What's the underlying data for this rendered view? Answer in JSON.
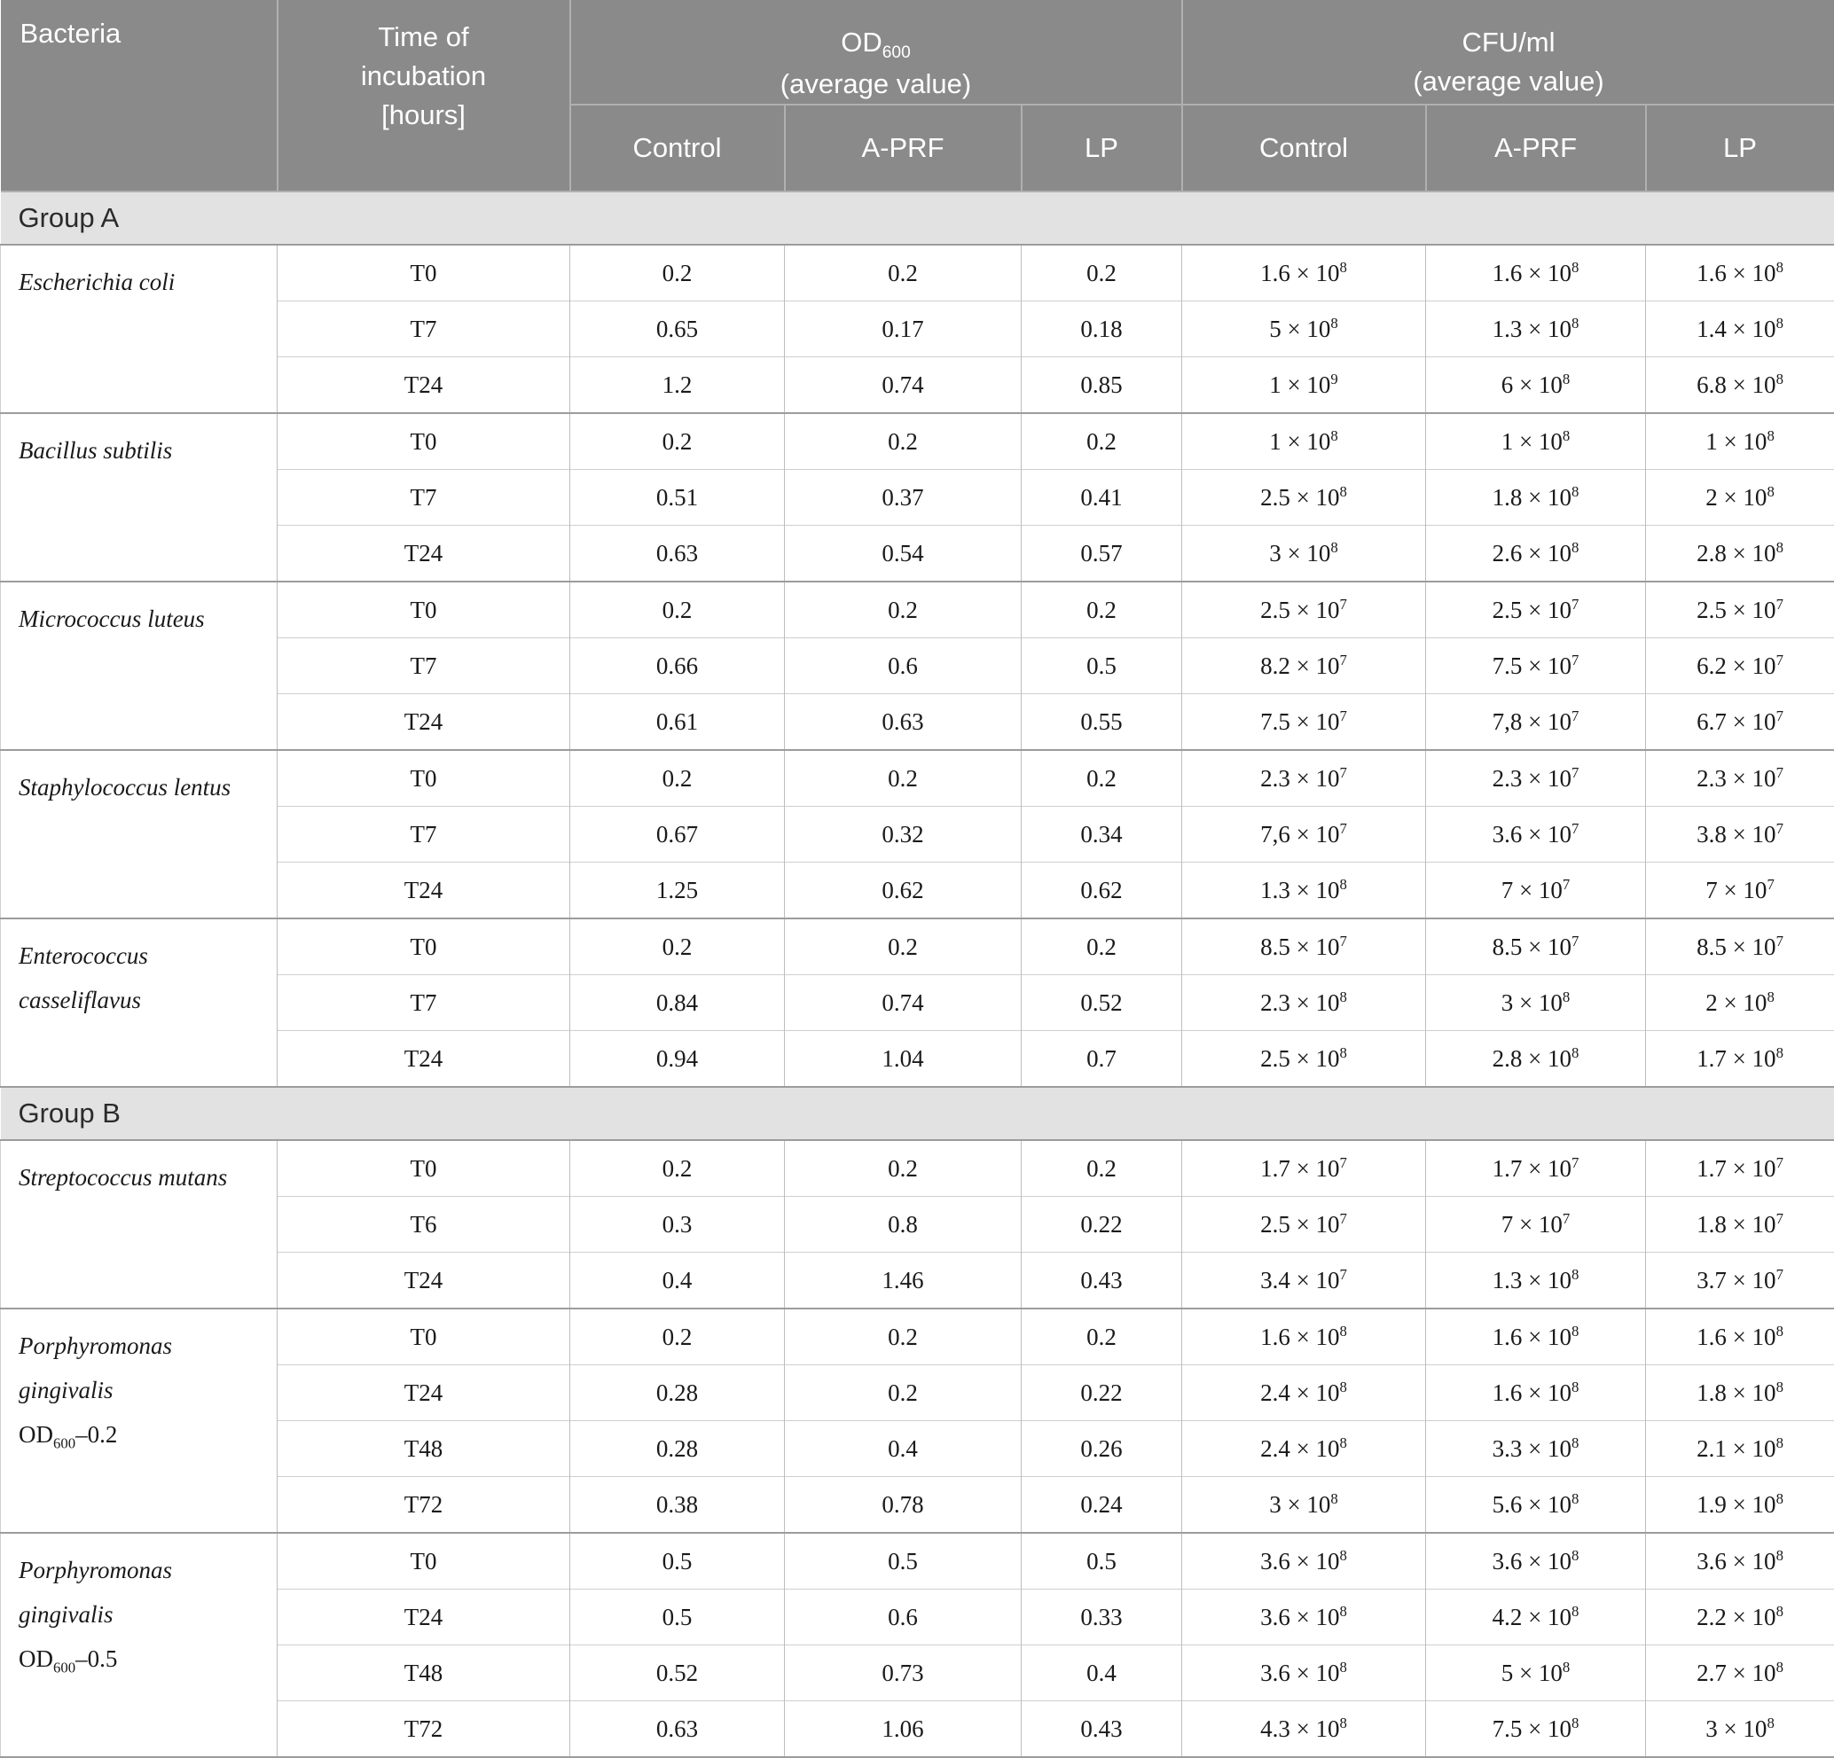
{
  "header": {
    "bacteria": "Bacteria",
    "time_lines": [
      "Time of",
      "incubation",
      "[hours]"
    ],
    "od_group": {
      "label": "OD",
      "sub": "600",
      "line2": "(average value)"
    },
    "cfu_group": {
      "label": "CFU/ml",
      "line2": "(average value)"
    },
    "subcolumns": [
      "Control",
      "A-PRF",
      "LP"
    ]
  },
  "colors": {
    "header_bg": "#8a8a8a",
    "header_text": "#ffffff",
    "group_band_bg": "#e2e2e2",
    "border_light": "#cfcfcf",
    "border_dark": "#9c9c9c"
  },
  "groups": [
    {
      "label": "Group A",
      "species": [
        {
          "name_lines": [
            "Escherichia coli"
          ],
          "od_note": null,
          "rows": [
            {
              "time": "T0",
              "od": [
                "0.2",
                "0.2",
                "0.2"
              ],
              "cfu": [
                [
                  "1.6 × 10",
                  "8"
                ],
                [
                  "1.6 × 10",
                  "8"
                ],
                [
                  "1.6 × 10",
                  "8"
                ]
              ]
            },
            {
              "time": "T7",
              "od": [
                "0.65",
                "0.17",
                "0.18"
              ],
              "cfu": [
                [
                  "5 × 10",
                  "8"
                ],
                [
                  "1.3 × 10",
                  "8"
                ],
                [
                  "1.4 × 10",
                  "8"
                ]
              ]
            },
            {
              "time": "T24",
              "od": [
                "1.2",
                "0.74",
                "0.85"
              ],
              "cfu": [
                [
                  "1 × 10",
                  "9"
                ],
                [
                  "6 × 10",
                  "8"
                ],
                [
                  "6.8 × 10",
                  "8"
                ]
              ]
            }
          ]
        },
        {
          "name_lines": [
            "Bacillus subtilis"
          ],
          "od_note": null,
          "rows": [
            {
              "time": "T0",
              "od": [
                "0.2",
                "0.2",
                "0.2"
              ],
              "cfu": [
                [
                  "1 × 10",
                  "8"
                ],
                [
                  "1 × 10",
                  "8"
                ],
                [
                  "1 × 10",
                  "8"
                ]
              ]
            },
            {
              "time": "T7",
              "od": [
                "0.51",
                "0.37",
                "0.41"
              ],
              "cfu": [
                [
                  "2.5 × 10",
                  "8"
                ],
                [
                  "1.8 × 10",
                  "8"
                ],
                [
                  "2 × 10",
                  "8"
                ]
              ]
            },
            {
              "time": "T24",
              "od": [
                "0.63",
                "0.54",
                "0.57"
              ],
              "cfu": [
                [
                  "3 × 10",
                  "8"
                ],
                [
                  "2.6 × 10",
                  "8"
                ],
                [
                  "2.8 × 10",
                  "8"
                ]
              ]
            }
          ]
        },
        {
          "name_lines": [
            "Micrococcus luteus"
          ],
          "od_note": null,
          "rows": [
            {
              "time": "T0",
              "od": [
                "0.2",
                "0.2",
                "0.2"
              ],
              "cfu": [
                [
                  "2.5 × 10",
                  "7"
                ],
                [
                  "2.5 × 10",
                  "7"
                ],
                [
                  "2.5 × 10",
                  "7"
                ]
              ]
            },
            {
              "time": "T7",
              "od": [
                "0.66",
                "0.6",
                "0.5"
              ],
              "cfu": [
                [
                  "8.2 × 10",
                  "7"
                ],
                [
                  "7.5 × 10",
                  "7"
                ],
                [
                  "6.2 × 10",
                  "7"
                ]
              ]
            },
            {
              "time": "T24",
              "od": [
                "0.61",
                "0.63",
                "0.55"
              ],
              "cfu": [
                [
                  "7.5 × 10",
                  "7"
                ],
                [
                  "7,8 × 10",
                  "7"
                ],
                [
                  "6.7 × 10",
                  "7"
                ]
              ]
            }
          ]
        },
        {
          "name_lines": [
            "Staphylococcus lentus"
          ],
          "od_note": null,
          "rows": [
            {
              "time": "T0",
              "od": [
                "0.2",
                "0.2",
                "0.2"
              ],
              "cfu": [
                [
                  "2.3 × 10",
                  "7"
                ],
                [
                  "2.3 × 10",
                  "7"
                ],
                [
                  "2.3 × 10",
                  "7"
                ]
              ]
            },
            {
              "time": "T7",
              "od": [
                "0.67",
                "0.32",
                "0.34"
              ],
              "cfu": [
                [
                  "7,6 × 10",
                  "7"
                ],
                [
                  "3.6 × 10",
                  "7"
                ],
                [
                  "3.8 × 10",
                  "7"
                ]
              ]
            },
            {
              "time": "T24",
              "od": [
                "1.25",
                "0.62",
                "0.62"
              ],
              "cfu": [
                [
                  "1.3 × 10",
                  "8"
                ],
                [
                  "7 × 10",
                  "7"
                ],
                [
                  "7 × 10",
                  "7"
                ]
              ]
            }
          ]
        },
        {
          "name_lines": [
            "Enterococcus",
            "casseliflavus"
          ],
          "od_note": null,
          "rows": [
            {
              "time": "T0",
              "od": [
                "0.2",
                "0.2",
                "0.2"
              ],
              "cfu": [
                [
                  "8.5 × 10",
                  "7"
                ],
                [
                  "8.5 × 10",
                  "7"
                ],
                [
                  "8.5 × 10",
                  "7"
                ]
              ]
            },
            {
              "time": "T7",
              "od": [
                "0.84",
                "0.74",
                "0.52"
              ],
              "cfu": [
                [
                  "2.3 × 10",
                  "8"
                ],
                [
                  "3 × 10",
                  "8"
                ],
                [
                  "2 × 10",
                  "8"
                ]
              ]
            },
            {
              "time": "T24",
              "od": [
                "0.94",
                "1.04",
                "0.7"
              ],
              "cfu": [
                [
                  "2.5 × 10",
                  "8"
                ],
                [
                  "2.8 × 10",
                  "8"
                ],
                [
                  "1.7 × 10",
                  "8"
                ]
              ]
            }
          ]
        }
      ]
    },
    {
      "label": "Group B",
      "species": [
        {
          "name_lines": [
            "Streptococcus mutans"
          ],
          "od_note": null,
          "rows": [
            {
              "time": "T0",
              "od": [
                "0.2",
                "0.2",
                "0.2"
              ],
              "cfu": [
                [
                  "1.7 × 10",
                  "7"
                ],
                [
                  "1.7 × 10",
                  "7"
                ],
                [
                  "1.7 × 10",
                  "7"
                ]
              ]
            },
            {
              "time": "T6",
              "od": [
                "0.3",
                "0.8",
                "0.22"
              ],
              "cfu": [
                [
                  "2.5 × 10",
                  "7"
                ],
                [
                  "7 × 10",
                  "7"
                ],
                [
                  "1.8 × 10",
                  "7"
                ]
              ]
            },
            {
              "time": "T24",
              "od": [
                "0.4",
                "1.46",
                "0.43"
              ],
              "cfu": [
                [
                  "3.4 × 10",
                  "7"
                ],
                [
                  "1.3 × 10",
                  "8"
                ],
                [
                  "3.7 × 10",
                  "7"
                ]
              ]
            }
          ]
        },
        {
          "name_lines": [
            "Porphyromonas",
            "gingivalis"
          ],
          "od_note": {
            "prefix": "OD",
            "sub": "600",
            "suffix": "–0.2"
          },
          "rows": [
            {
              "time": "T0",
              "od": [
                "0.2",
                "0.2",
                "0.2"
              ],
              "cfu": [
                [
                  "1.6 × 10",
                  "8"
                ],
                [
                  "1.6 × 10",
                  "8"
                ],
                [
                  "1.6 × 10",
                  "8"
                ]
              ]
            },
            {
              "time": "T24",
              "od": [
                "0.28",
                "0.2",
                "0.22"
              ],
              "cfu": [
                [
                  "2.4 × 10",
                  "8"
                ],
                [
                  "1.6 × 10",
                  "8"
                ],
                [
                  "1.8 × 10",
                  "8"
                ]
              ]
            },
            {
              "time": "T48",
              "od": [
                "0.28",
                "0.4",
                "0.26"
              ],
              "cfu": [
                [
                  "2.4 × 10",
                  "8"
                ],
                [
                  "3.3 × 10",
                  "8"
                ],
                [
                  "2.1 × 10",
                  "8"
                ]
              ]
            },
            {
              "time": "T72",
              "od": [
                "0.38",
                "0.78",
                "0.24"
              ],
              "cfu": [
                [
                  "3 × 10",
                  "8"
                ],
                [
                  "5.6 × 10",
                  "8"
                ],
                [
                  "1.9 × 10",
                  "8"
                ]
              ]
            }
          ]
        },
        {
          "name_lines": [
            "Porphyromonas",
            "gingivalis"
          ],
          "od_note": {
            "prefix": "OD",
            "sub": "600",
            "suffix": "–0.5"
          },
          "rows": [
            {
              "time": "T0",
              "od": [
                "0.5",
                "0.5",
                "0.5"
              ],
              "cfu": [
                [
                  "3.6 × 10",
                  "8"
                ],
                [
                  "3.6 × 10",
                  "8"
                ],
                [
                  "3.6 × 10",
                  "8"
                ]
              ]
            },
            {
              "time": "T24",
              "od": [
                "0.5",
                "0.6",
                "0.33"
              ],
              "cfu": [
                [
                  "3.6 × 10",
                  "8"
                ],
                [
                  "4.2 × 10",
                  "8"
                ],
                [
                  "2.2 × 10",
                  "8"
                ]
              ]
            },
            {
              "time": "T48",
              "od": [
                "0.52",
                "0.73",
                "0.4"
              ],
              "cfu": [
                [
                  "3.6 × 10",
                  "8"
                ],
                [
                  "5 × 10",
                  "8"
                ],
                [
                  "2.7 × 10",
                  "8"
                ]
              ]
            },
            {
              "time": "T72",
              "od": [
                "0.63",
                "1.06",
                "0.43"
              ],
              "cfu": [
                [
                  "4.3 × 10",
                  "8"
                ],
                [
                  "7.5 × 10",
                  "8"
                ],
                [
                  "3 × 10",
                  "8"
                ]
              ]
            }
          ]
        }
      ]
    }
  ]
}
